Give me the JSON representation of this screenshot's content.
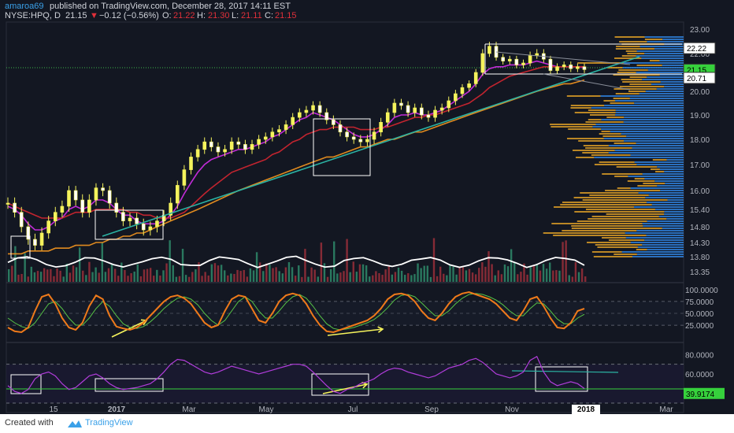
{
  "header": {
    "author": "amaroa69",
    "published": "published on TradingView.com, December 28, 2017 14:11 EST",
    "symbol": "NYSE:HPQ, D",
    "last": "21.15",
    "change": "−0.12 (−0.56%)",
    "o_label": "O:",
    "o_value": "21.22",
    "h_label": "H:",
    "h_value": "21.30",
    "l_label": "L:",
    "l_value": "21.11",
    "c_label": "C:",
    "c_value": "21.15"
  },
  "footer": {
    "created_with": "Created with",
    "brand": "TradingView"
  },
  "colors": {
    "background": "#131722",
    "candle": "#f5f35c",
    "ma_fast": "#c22bd8",
    "ma_mid": "#c2242f",
    "ma_slow": "#e08a1f",
    "trendline": "#2bb3a3",
    "vp_up": "#2f7fd8",
    "vp_down": "#d99b26",
    "rsi": "#b13ddb",
    "stoch_k": "#ef7a1a",
    "stoch_d": "#57c447",
    "arrow": "#f5f35c",
    "badge": "#36d13c"
  },
  "chart_data": [
    {
      "type": "line",
      "title": "NYSE:HPQ, D",
      "x_ticks": [
        "15",
        "2017",
        "Mar",
        "May",
        "Jul",
        "Sep",
        "Nov",
        "2018",
        "Mar"
      ],
      "y_ticks": [
        23.0,
        22.0,
        21.0,
        20.0,
        19.0,
        18.0,
        17.0,
        16.0,
        15.4,
        14.8,
        14.3,
        13.8,
        13.35
      ],
      "y_tick_labels": [
        "23.00",
        "22.00",
        "",
        "20.00",
        "19.00",
        "18.00",
        "17.00",
        "16.00",
        "15.40",
        "14.80",
        "14.30",
        "13.80",
        "13.35"
      ],
      "price_labels": [
        {
          "value": 22.22,
          "label": "22.22"
        },
        {
          "value": 21.15,
          "label": "21.15"
        },
        {
          "value": 20.71,
          "label": "20.71"
        }
      ],
      "series": [
        {
          "values": [
            15.6,
            15.3,
            14.8,
            14.4,
            14.2,
            14.6,
            15.0,
            15.3,
            15.5,
            16.0,
            15.7,
            15.3,
            15.7,
            16.1,
            16.0,
            15.6,
            15.3,
            15.0,
            15.1,
            14.9,
            14.7,
            14.8,
            15.0,
            15.2,
            15.6,
            16.2,
            16.8,
            17.3,
            17.6,
            17.9,
            17.7,
            17.5,
            17.6,
            17.9,
            17.8,
            17.6,
            17.8,
            18.0,
            18.1,
            18.3,
            18.4,
            18.6,
            18.9,
            19.1,
            19.2,
            19.4,
            19.1,
            18.8,
            18.6,
            18.3,
            18.1,
            18.0,
            17.9,
            18.0,
            18.3,
            18.7,
            19.1,
            19.5,
            19.4,
            19.1,
            19.3,
            19.0,
            18.9,
            19.2,
            19.3,
            19.6,
            19.9,
            20.2,
            20.4,
            21.0,
            22.0,
            22.3,
            21.8,
            21.6,
            21.7,
            21.4,
            21.5,
            21.9,
            22.0,
            21.7,
            21.1,
            21.3,
            21.4,
            21.2,
            21.3,
            21.15
          ]
        },
        {
          "values": [
            15.5,
            15.4,
            15.2,
            14.9,
            14.7,
            14.7,
            14.8,
            15.0,
            15.1,
            15.4,
            15.5,
            15.4,
            15.5,
            15.7,
            15.7,
            15.6,
            15.4,
            15.2,
            15.2,
            15.0,
            14.9,
            14.9,
            14.9,
            15.0,
            15.2,
            15.5,
            15.9,
            16.3,
            16.7,
            17.0,
            17.2,
            17.3,
            17.4,
            17.5,
            17.6,
            17.6,
            17.7,
            17.8,
            17.9,
            18.1,
            18.2,
            18.4,
            18.6,
            18.8,
            18.9,
            19.1,
            19.0,
            18.9,
            18.8,
            18.6,
            18.4,
            18.2,
            18.1,
            18.1,
            18.2,
            18.4,
            18.6,
            18.9,
            19.0,
            19.0,
            19.1,
            19.0,
            19.0,
            19.1,
            19.2,
            19.4,
            19.6,
            19.8,
            20.0,
            20.4,
            20.9,
            21.2,
            21.3,
            21.3,
            21.4,
            21.4,
            21.4,
            21.5,
            21.6,
            21.5,
            21.4,
            21.3,
            21.3,
            21.3,
            21.3,
            21.25
          ]
        },
        {
          "values": [
            15.6,
            15.5,
            15.4,
            15.3,
            15.2,
            15.1,
            15.1,
            15.1,
            15.1,
            15.2,
            15.3,
            15.3,
            15.3,
            15.4,
            15.4,
            15.4,
            15.4,
            15.4,
            15.3,
            15.3,
            15.2,
            15.2,
            15.1,
            15.1,
            15.1,
            15.2,
            15.3,
            15.5,
            15.7,
            15.9,
            16.1,
            16.3,
            16.5,
            16.7,
            16.8,
            16.9,
            17.0,
            17.1,
            17.2,
            17.4,
            17.5,
            17.7,
            17.9,
            18.0,
            18.2,
            18.3,
            18.4,
            18.4,
            18.5,
            18.5,
            18.5,
            18.5,
            18.4,
            18.4,
            18.4,
            18.5,
            18.5,
            18.6,
            18.7,
            18.8,
            18.9,
            18.9,
            19.0,
            19.0,
            19.1,
            19.2,
            19.3,
            19.4,
            19.5,
            19.7,
            19.9,
            20.2,
            20.4,
            20.6,
            20.8,
            20.9,
            21.0,
            21.1,
            21.2,
            21.3,
            21.3,
            21.3,
            21.3,
            21.3,
            21.3,
            21.3
          ]
        },
        {
          "values": [
            13.9,
            13.9,
            13.9,
            14.0,
            14.0,
            14.0,
            14.0,
            14.1,
            14.1,
            14.1,
            14.2,
            14.2,
            14.2,
            14.3,
            14.3,
            14.4,
            14.4,
            14.5,
            14.5,
            14.6,
            14.6,
            14.7,
            14.8,
            14.9,
            15.0,
            15.1,
            15.2,
            15.3,
            15.4,
            15.5,
            15.6,
            15.7,
            15.8,
            15.9,
            16.0,
            16.1,
            16.2,
            16.3,
            16.4,
            16.5,
            16.6,
            16.7,
            16.8,
            16.9,
            17.0,
            17.1,
            17.2,
            17.3,
            17.3,
            17.4,
            17.5,
            17.6,
            17.7,
            17.7,
            17.8,
            17.9,
            18.0,
            18.0,
            18.1,
            18.2,
            18.3,
            18.3,
            18.4,
            18.5,
            18.6,
            18.7,
            18.8,
            18.9,
            19.0,
            19.1,
            19.2,
            19.3,
            19.4,
            19.5,
            19.6,
            19.7,
            19.8,
            19.9,
            20.0,
            20.1,
            20.2,
            20.3,
            20.4,
            20.4,
            20.5,
            20.6
          ]
        }
      ]
    },
    {
      "type": "line",
      "y_ticks": [
        100,
        75,
        50,
        25
      ],
      "y_tick_labels": [
        "100.0000",
        "75.0000",
        "50.0000",
        "25.0000"
      ],
      "series": [
        {
          "values": [
            20,
            12,
            10,
            20,
            55,
            85,
            90,
            70,
            40,
            20,
            15,
            30,
            65,
            88,
            80,
            45,
            22,
            18,
            15,
            20,
            30,
            45,
            60,
            75,
            85,
            88,
            82,
            70,
            50,
            30,
            20,
            25,
            55,
            80,
            88,
            85,
            60,
            35,
            30,
            50,
            75,
            88,
            92,
            88,
            70,
            45,
            25,
            12,
            10,
            15,
            20,
            25,
            30,
            35,
            45,
            60,
            80,
            90,
            92,
            88,
            75,
            55,
            40,
            35,
            50,
            70,
            85,
            92,
            95,
            90,
            85,
            80,
            70,
            55,
            40,
            35,
            55,
            80,
            85,
            65,
            40,
            20,
            18,
            30,
            55,
            60
          ]
        },
        {
          "values": [
            40,
            30,
            22,
            18,
            30,
            50,
            70,
            75,
            60,
            40,
            25,
            25,
            40,
            60,
            75,
            65,
            45,
            28,
            20,
            18,
            22,
            32,
            45,
            60,
            72,
            82,
            85,
            80,
            68,
            50,
            35,
            25,
            35,
            55,
            75,
            85,
            75,
            55,
            40,
            40,
            55,
            72,
            85,
            90,
            82,
            65,
            45,
            28,
            18,
            15,
            17,
            20,
            25,
            30,
            37,
            48,
            62,
            78,
            88,
            90,
            85,
            72,
            58,
            45,
            45,
            55,
            70,
            82,
            90,
            92,
            90,
            85,
            78,
            68,
            55,
            45,
            45,
            60,
            72,
            70,
            55,
            38,
            28,
            28,
            40,
            48
          ]
        }
      ]
    },
    {
      "type": "line",
      "y_ticks": [
        80,
        60
      ],
      "y_tick_labels": [
        "80.0000",
        "60.0000"
      ],
      "price_labels": [
        {
          "value": 39.9174,
          "label": "39.9174"
        }
      ],
      "series": [
        {
          "values": [
            48,
            42,
            40,
            44,
            55,
            60,
            62,
            58,
            50,
            44,
            46,
            52,
            58,
            60,
            56,
            50,
            46,
            44,
            45,
            46,
            48,
            50,
            55,
            62,
            70,
            75,
            74,
            70,
            66,
            62,
            60,
            62,
            65,
            68,
            66,
            64,
            62,
            60,
            62,
            64,
            66,
            68,
            70,
            70,
            68,
            62,
            55,
            48,
            42,
            40,
            44,
            46,
            50,
            52,
            55,
            60,
            64,
            66,
            65,
            62,
            60,
            58,
            56,
            58,
            62,
            66,
            68,
            70,
            74,
            76,
            72,
            66,
            60,
            58,
            56,
            58,
            62,
            74,
            78,
            62,
            52,
            48,
            50,
            52,
            50,
            45
          ]
        }
      ]
    }
  ]
}
